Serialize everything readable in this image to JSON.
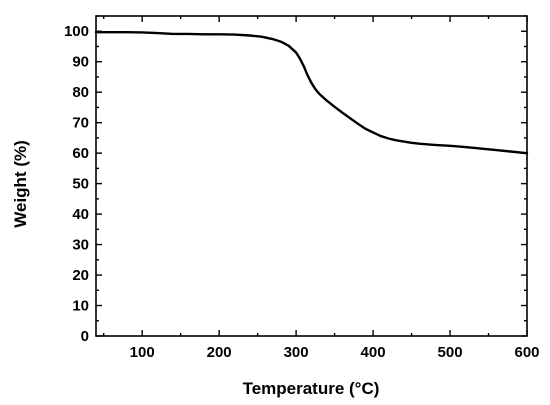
{
  "chart_data": {
    "type": "line",
    "xlabel": "Temperature (°C)",
    "ylabel": "Weight (%)",
    "xlim": [
      40,
      600
    ],
    "ylim": [
      0,
      105
    ],
    "xticks": [
      100,
      200,
      300,
      400,
      500,
      600
    ],
    "xtick_labels": [
      "100",
      "200",
      "300",
      "400",
      "500",
      "600"
    ],
    "yticks": [
      0,
      10,
      20,
      30,
      40,
      50,
      60,
      70,
      80,
      90,
      100
    ],
    "ytick_labels": [
      "0",
      "10",
      "20",
      "30",
      "40",
      "50",
      "60",
      "70",
      "80",
      "90",
      "100"
    ],
    "grid": false,
    "legend": false,
    "line_color": "#000000",
    "series": [
      {
        "x": [
          40,
          60,
          80,
          100,
          120,
          140,
          160,
          180,
          200,
          220,
          240,
          255,
          270,
          280,
          290,
          300,
          305,
          310,
          315,
          320,
          325,
          330,
          340,
          350,
          360,
          370,
          380,
          390,
          400,
          410,
          420,
          430,
          440,
          450,
          460,
          480,
          500,
          520,
          540,
          560,
          580,
          600
        ],
        "y": [
          99.7,
          99.7,
          99.7,
          99.6,
          99.4,
          99.1,
          99.1,
          99.0,
          99.0,
          98.9,
          98.6,
          98.2,
          97.4,
          96.6,
          95.3,
          93.0,
          91.0,
          88.5,
          85.5,
          83.0,
          81.0,
          79.5,
          77.2,
          75.2,
          73.3,
          71.5,
          69.7,
          68.0,
          66.8,
          65.6,
          64.8,
          64.2,
          63.8,
          63.4,
          63.1,
          62.7,
          62.4,
          62.0,
          61.5,
          61.0,
          60.5,
          60.0
        ]
      }
    ]
  }
}
